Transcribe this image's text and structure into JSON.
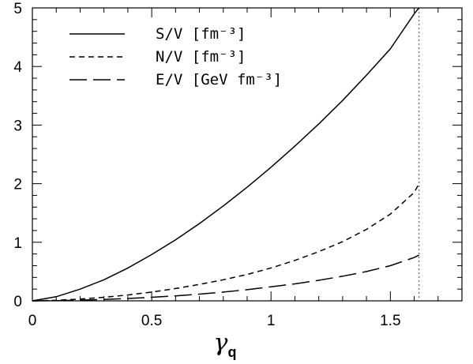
{
  "chart_data": {
    "type": "line",
    "xlabel": "γ",
    "xlabel_subscript": "q",
    "ylabel": "",
    "xlim": [
      0,
      1.8
    ],
    "ylim": [
      0,
      5
    ],
    "x_ticks": [
      {
        "value": 0,
        "label": "0"
      },
      {
        "value": 0.5,
        "label": "0.5"
      },
      {
        "value": 1,
        "label": "1"
      },
      {
        "value": 1.5,
        "label": "1.5"
      }
    ],
    "y_ticks": [
      {
        "value": 0,
        "label": "0"
      },
      {
        "value": 1,
        "label": "1"
      },
      {
        "value": 2,
        "label": "2"
      },
      {
        "value": 3,
        "label": "3"
      },
      {
        "value": 4,
        "label": "4"
      },
      {
        "value": 5,
        "label": "5"
      }
    ],
    "grid": false,
    "legend_position": "top-left",
    "vertical_marker": {
      "x": 1.62,
      "style": "dotted"
    },
    "series": [
      {
        "name": "S/V [fm⁻³]",
        "style": "solid",
        "x": [
          0,
          0.1,
          0.2,
          0.3,
          0.4,
          0.5,
          0.6,
          0.7,
          0.8,
          0.9,
          1.0,
          1.1,
          1.2,
          1.3,
          1.4,
          1.5,
          1.6,
          1.62
        ],
        "y": [
          0,
          0.07,
          0.2,
          0.36,
          0.56,
          0.79,
          1.04,
          1.32,
          1.62,
          1.94,
          2.28,
          2.64,
          3.02,
          3.42,
          3.85,
          4.3,
          4.9,
          5.0
        ]
      },
      {
        "name": "N/V [fm⁻³]",
        "style": "dashed",
        "x": [
          0,
          0.1,
          0.2,
          0.3,
          0.4,
          0.5,
          0.6,
          0.7,
          0.8,
          0.9,
          1.0,
          1.1,
          1.2,
          1.3,
          1.4,
          1.5,
          1.6,
          1.62
        ],
        "y": [
          0,
          0.01,
          0.03,
          0.06,
          0.1,
          0.15,
          0.21,
          0.28,
          0.36,
          0.45,
          0.56,
          0.69,
          0.84,
          1.01,
          1.22,
          1.48,
          1.85,
          2.0
        ]
      },
      {
        "name": "E/V [GeV fm⁻³]",
        "style": "longdash",
        "x": [
          0,
          0.1,
          0.2,
          0.3,
          0.4,
          0.5,
          0.6,
          0.7,
          0.8,
          0.9,
          1.0,
          1.1,
          1.2,
          1.3,
          1.4,
          1.5,
          1.6,
          1.62
        ],
        "y": [
          0,
          0.004,
          0.012,
          0.024,
          0.04,
          0.06,
          0.085,
          0.115,
          0.15,
          0.19,
          0.24,
          0.29,
          0.35,
          0.42,
          0.5,
          0.6,
          0.74,
          0.78
        ]
      }
    ]
  }
}
